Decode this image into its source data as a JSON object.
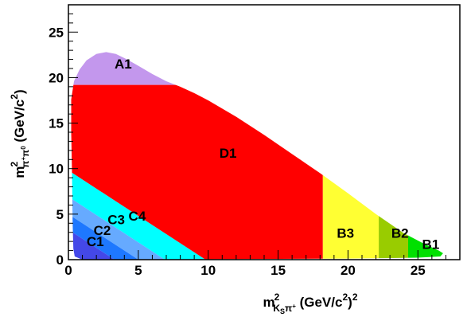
{
  "chart_data": {
    "type": "area",
    "title": "",
    "xlabel": {
      "prefix": "m",
      "sup": "2",
      "sub": "K",
      "sub_sub": "S",
      "sub_tail": "π",
      "sub_tail_sup": "+",
      "suffix": " (GeV/c",
      "suffix_sup": "2",
      "suffix_end": ")",
      "end_sup": "2"
    },
    "ylabel": {
      "prefix": "m",
      "sup": "2",
      "sub": "π",
      "sub_sup": "+",
      "sub_tail": "π",
      "sub_tail_sup": "0",
      "suffix": " (GeV/c",
      "suffix_sup": "2",
      "suffix_end": ")"
    },
    "xlim": [
      0,
      28
    ],
    "ylim": [
      0,
      28
    ],
    "x_ticks": [
      "0",
      "5",
      "10",
      "15",
      "20",
      "25"
    ],
    "x_tick_values": [
      0,
      5,
      10,
      15,
      20,
      25
    ],
    "y_ticks": [
      "0",
      "5",
      "10",
      "15",
      "20",
      "25"
    ],
    "y_tick_values": [
      0,
      5,
      10,
      15,
      20,
      25
    ],
    "boundary": [
      [
        0.2,
        17.6
      ],
      [
        0.4,
        19.6
      ],
      [
        0.8,
        20.9
      ],
      [
        1.3,
        21.9
      ],
      [
        2.0,
        22.6
      ],
      [
        2.7,
        22.8
      ],
      [
        3.4,
        22.6
      ],
      [
        4.2,
        22.0
      ],
      [
        5.0,
        21.3
      ],
      [
        6.0,
        20.4
      ],
      [
        7.0,
        19.6
      ],
      [
        8.0,
        19.0
      ],
      [
        9.0,
        18.3
      ],
      [
        10.0,
        17.5
      ],
      [
        12.0,
        15.7
      ],
      [
        14.0,
        13.7
      ],
      [
        16.0,
        11.6
      ],
      [
        18.0,
        9.5
      ],
      [
        20.0,
        7.3
      ],
      [
        22.0,
        5.0
      ],
      [
        24.0,
        2.9
      ],
      [
        25.5,
        1.7
      ],
      [
        26.5,
        1.0
      ],
      [
        26.8,
        0.7
      ],
      [
        26.6,
        0.35
      ],
      [
        25.0,
        0.22
      ],
      [
        20.0,
        0.12
      ],
      [
        10.0,
        0.05
      ],
      [
        1.0,
        0.0
      ],
      [
        0.45,
        0.35
      ],
      [
        0.35,
        1.2
      ],
      [
        0.3,
        4.0
      ],
      [
        0.25,
        10.0
      ],
      [
        0.2,
        14.0
      ]
    ],
    "regions": [
      {
        "name": "A1",
        "color": "#c397ed",
        "xrange": [
          0,
          30
        ],
        "yrange": [
          19.2,
          30
        ],
        "label_at": [
          3.3,
          21.0
        ]
      },
      {
        "name": "D1",
        "color": "#ff0000",
        "band": [
          -1,
          9.8
        ],
        "xrange": [
          0,
          18.2
        ],
        "yrange": [
          0,
          19.2
        ],
        "label_at": [
          10.8,
          11.2
        ]
      },
      {
        "name": "B3",
        "color": "#ffff33",
        "xrange": [
          18.2,
          22.2
        ],
        "yrange": [
          0,
          30
        ],
        "label_at": [
          19.2,
          2.4
        ]
      },
      {
        "name": "B2",
        "color": "#99cc00",
        "xrange": [
          22.2,
          24.3
        ],
        "yrange": [
          0,
          30
        ],
        "label_at": [
          23.1,
          2.4
        ]
      },
      {
        "name": "B1",
        "color": "#00e000",
        "xrange": [
          24.3,
          30
        ],
        "yrange": [
          0,
          30
        ],
        "label_at": [
          25.3,
          1.2
        ]
      },
      {
        "name": "C4",
        "color": "#00ffff",
        "band": [
          6.9,
          9.8
        ],
        "label_at": [
          4.3,
          4.3
        ]
      },
      {
        "name": "C3",
        "color": "#66aaff",
        "band": [
          5.0,
          6.9
        ],
        "label_at": [
          2.8,
          3.9
        ]
      },
      {
        "name": "C2",
        "color": "#1e78ff",
        "band": [
          3.3,
          5.0
        ],
        "label_at": [
          1.8,
          2.7
        ]
      },
      {
        "name": "C1",
        "color": "#4448e8",
        "band": [
          -1,
          3.3
        ],
        "label_at": [
          1.3,
          1.5
        ]
      }
    ]
  }
}
